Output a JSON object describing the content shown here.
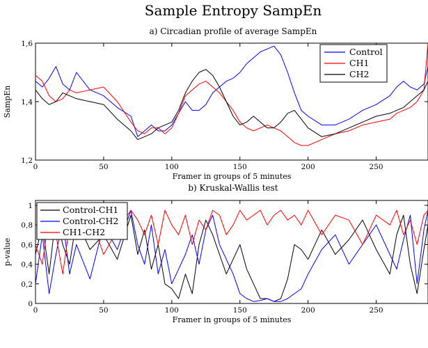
{
  "figure": {
    "title": "Sample Entropy  SampEn"
  },
  "chart_data": [
    {
      "type": "line",
      "subtitle": "a) Circadian profile of average SampEn",
      "xlabel": "Framer in groups of 5 minutes",
      "ylabel": "SampEn",
      "xlim": [
        0,
        288
      ],
      "ylim": [
        1.2,
        1.6
      ],
      "xticks": [
        0,
        50,
        100,
        150,
        200,
        250
      ],
      "yticks": [
        1.2,
        1.4,
        1.6
      ],
      "ytick_labels": [
        "1,2",
        "1,4",
        "1,6"
      ],
      "legend_position": "top-right",
      "grid": false,
      "series": [
        {
          "name": "Control",
          "color": "#0000ff",
          "x": [
            0,
            5,
            10,
            15,
            20,
            25,
            30,
            40,
            50,
            60,
            70,
            75,
            80,
            85,
            90,
            95,
            100,
            105,
            110,
            115,
            120,
            125,
            130,
            135,
            140,
            145,
            150,
            155,
            160,
            165,
            170,
            175,
            180,
            185,
            190,
            195,
            200,
            210,
            220,
            230,
            240,
            250,
            260,
            265,
            270,
            275,
            280,
            285,
            288
          ],
          "y": [
            1.47,
            1.45,
            1.48,
            1.52,
            1.46,
            1.44,
            1.5,
            1.44,
            1.42,
            1.38,
            1.35,
            1.28,
            1.3,
            1.32,
            1.3,
            1.3,
            1.32,
            1.36,
            1.4,
            1.37,
            1.37,
            1.39,
            1.43,
            1.45,
            1.47,
            1.48,
            1.5,
            1.53,
            1.55,
            1.57,
            1.58,
            1.59,
            1.56,
            1.5,
            1.43,
            1.37,
            1.35,
            1.32,
            1.32,
            1.34,
            1.37,
            1.39,
            1.42,
            1.45,
            1.47,
            1.45,
            1.44,
            1.46,
            1.52
          ]
        },
        {
          "name": "CH1",
          "color": "#ff0000",
          "x": [
            0,
            5,
            10,
            15,
            20,
            25,
            30,
            40,
            50,
            60,
            70,
            75,
            80,
            85,
            90,
            95,
            100,
            105,
            110,
            115,
            120,
            125,
            130,
            135,
            140,
            145,
            150,
            155,
            160,
            165,
            170,
            175,
            180,
            185,
            190,
            195,
            200,
            210,
            220,
            230,
            240,
            250,
            260,
            265,
            270,
            275,
            280,
            285,
            288
          ],
          "y": [
            1.49,
            1.47,
            1.42,
            1.4,
            1.41,
            1.44,
            1.43,
            1.44,
            1.45,
            1.4,
            1.33,
            1.3,
            1.29,
            1.31,
            1.31,
            1.29,
            1.31,
            1.36,
            1.42,
            1.44,
            1.46,
            1.47,
            1.45,
            1.43,
            1.4,
            1.37,
            1.33,
            1.31,
            1.3,
            1.31,
            1.32,
            1.31,
            1.3,
            1.28,
            1.26,
            1.25,
            1.25,
            1.27,
            1.29,
            1.3,
            1.32,
            1.33,
            1.34,
            1.36,
            1.37,
            1.38,
            1.4,
            1.44,
            1.6
          ]
        },
        {
          "name": "CH2",
          "color": "#000000",
          "x": [
            0,
            5,
            10,
            15,
            20,
            25,
            30,
            40,
            50,
            60,
            70,
            75,
            80,
            85,
            90,
            95,
            100,
            105,
            110,
            115,
            120,
            125,
            130,
            135,
            140,
            145,
            150,
            155,
            160,
            165,
            170,
            175,
            180,
            185,
            190,
            195,
            200,
            210,
            220,
            230,
            240,
            250,
            260,
            265,
            270,
            275,
            280,
            285,
            288
          ],
          "y": [
            1.44,
            1.41,
            1.39,
            1.4,
            1.43,
            1.42,
            1.41,
            1.4,
            1.39,
            1.34,
            1.3,
            1.27,
            1.28,
            1.29,
            1.31,
            1.32,
            1.33,
            1.37,
            1.43,
            1.47,
            1.5,
            1.51,
            1.49,
            1.45,
            1.4,
            1.35,
            1.32,
            1.33,
            1.35,
            1.33,
            1.31,
            1.31,
            1.33,
            1.36,
            1.37,
            1.34,
            1.31,
            1.28,
            1.29,
            1.31,
            1.33,
            1.35,
            1.36,
            1.37,
            1.38,
            1.4,
            1.42,
            1.44,
            1.47
          ]
        }
      ]
    },
    {
      "type": "line",
      "subtitle": "b) Kruskal-Wallis test",
      "xlabel": "Framer in groups of 5 minutes",
      "ylabel": "p-value",
      "xlim": [
        0,
        288
      ],
      "ylim": [
        0,
        1.05
      ],
      "xticks": [
        0,
        50,
        100,
        150,
        200,
        250
      ],
      "yticks": [
        0,
        0.2,
        0.4,
        0.6,
        0.8,
        1
      ],
      "ytick_labels": [
        "0",
        "0,2",
        "0,4",
        "0,6",
        "0,8",
        "1"
      ],
      "legend_position": "top-left",
      "grid": false,
      "series": [
        {
          "name": "Control-CH1",
          "color": "#000000",
          "x": [
            0,
            5,
            10,
            15,
            20,
            25,
            30,
            40,
            50,
            60,
            70,
            75,
            80,
            85,
            90,
            95,
            100,
            105,
            110,
            115,
            120,
            125,
            130,
            135,
            140,
            145,
            150,
            155,
            160,
            165,
            170,
            175,
            180,
            185,
            190,
            195,
            200,
            210,
            220,
            230,
            240,
            250,
            260,
            265,
            270,
            275,
            280,
            285,
            288
          ],
          "y": [
            0.5,
            0.8,
            0.3,
            0.9,
            0.6,
            0.4,
            0.85,
            0.55,
            0.7,
            0.45,
            0.9,
            0.5,
            0.75,
            0.35,
            0.6,
            0.2,
            0.15,
            0.05,
            0.3,
            0.1,
            0.6,
            0.85,
            0.7,
            0.5,
            0.3,
            0.45,
            0.6,
            0.35,
            0.2,
            0.05,
            0.05,
            0.02,
            0.05,
            0.25,
            0.6,
            0.55,
            0.45,
            0.75,
            0.5,
            0.65,
            0.85,
            0.55,
            0.3,
            0.7,
            0.9,
            0.4,
            0.1,
            0.55,
            0.8
          ]
        },
        {
          "name": "Control-CH2",
          "color": "#0000ff",
          "x": [
            0,
            5,
            10,
            15,
            20,
            25,
            30,
            40,
            50,
            60,
            70,
            75,
            80,
            85,
            90,
            95,
            100,
            105,
            110,
            115,
            120,
            125,
            130,
            135,
            140,
            145,
            150,
            155,
            160,
            165,
            170,
            175,
            180,
            185,
            190,
            195,
            200,
            210,
            220,
            230,
            240,
            250,
            260,
            265,
            270,
            275,
            280,
            285,
            288
          ],
          "y": [
            0.2,
            0.7,
            0.1,
            0.5,
            0.85,
            0.3,
            0.6,
            0.25,
            0.8,
            0.55,
            0.95,
            0.6,
            0.4,
            0.8,
            0.3,
            0.55,
            0.2,
            0.35,
            0.5,
            0.7,
            0.4,
            0.75,
            0.9,
            0.6,
            0.45,
            0.3,
            0.1,
            0.05,
            0.02,
            0.03,
            0.05,
            0.02,
            0.02,
            0.05,
            0.1,
            0.15,
            0.3,
            0.55,
            0.7,
            0.4,
            0.6,
            0.8,
            0.5,
            0.35,
            0.65,
            0.9,
            0.2,
            0.75,
            0.95
          ]
        },
        {
          "name": "CH1-CH2",
          "color": "#ff0000",
          "x": [
            0,
            5,
            10,
            15,
            20,
            25,
            30,
            40,
            50,
            60,
            70,
            75,
            80,
            85,
            90,
            95,
            100,
            105,
            110,
            115,
            120,
            125,
            130,
            135,
            140,
            145,
            150,
            155,
            160,
            165,
            170,
            175,
            180,
            185,
            190,
            195,
            200,
            210,
            220,
            230,
            240,
            250,
            260,
            265,
            270,
            275,
            280,
            285,
            288
          ],
          "y": [
            0.6,
            0.4,
            0.9,
            0.7,
            0.3,
            0.8,
            0.65,
            0.9,
            0.5,
            0.75,
            0.95,
            0.85,
            0.7,
            0.9,
            0.6,
            0.95,
            0.8,
            0.7,
            0.9,
            0.6,
            0.85,
            0.75,
            0.95,
            0.9,
            0.7,
            0.8,
            0.95,
            0.85,
            0.9,
            0.95,
            0.8,
            0.9,
            0.95,
            0.85,
            0.9,
            0.8,
            0.95,
            0.7,
            0.9,
            0.85,
            0.6,
            0.9,
            0.8,
            0.95,
            0.7,
            0.85,
            0.6,
            0.9,
            0.95
          ]
        }
      ]
    }
  ]
}
